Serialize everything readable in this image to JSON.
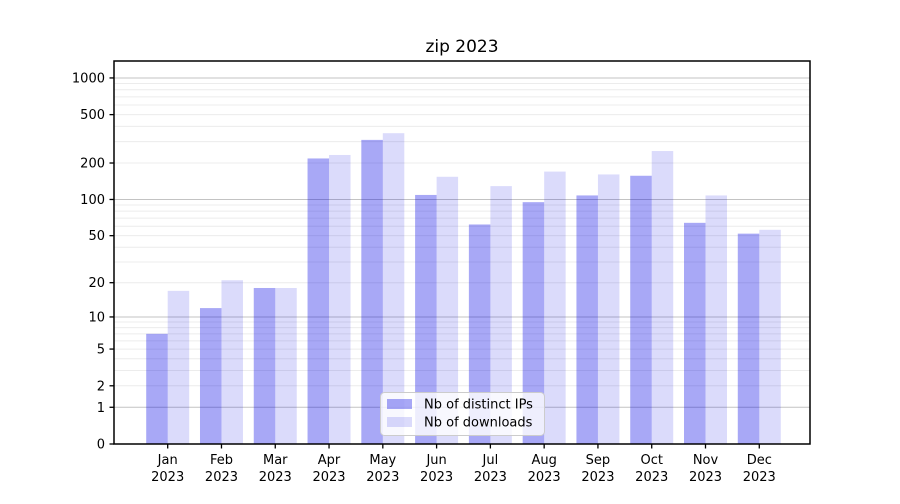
{
  "title": "zip 2023",
  "chart_data": {
    "type": "bar",
    "title": "zip 2023",
    "yscale": "log1p",
    "grid": true,
    "legend_position": "lower center",
    "year_label": "2023",
    "categories": [
      "Jan",
      "Feb",
      "Mar",
      "Apr",
      "May",
      "Jun",
      "Jul",
      "Aug",
      "Sep",
      "Oct",
      "Nov",
      "Dec"
    ],
    "series": [
      {
        "name": "Nb of distinct IPs",
        "color": "#0000e6",
        "opacity": 0.34,
        "values": [
          7,
          12,
          18,
          218,
          310,
          109,
          62,
          95,
          108,
          157,
          64,
          52
        ]
      },
      {
        "name": "Nb of downloads",
        "color": "#0000e6",
        "opacity": 0.14,
        "values": [
          17,
          21,
          18,
          233,
          352,
          154,
          129,
          170,
          161,
          251,
          108,
          56
        ]
      }
    ],
    "yticks": [
      0,
      1,
      2,
      5,
      10,
      20,
      50,
      100,
      200,
      500,
      1000
    ],
    "ytick_labels": [
      "0",
      "1",
      "2",
      "5",
      "10",
      "20",
      "50",
      "100",
      "200",
      "500",
      "1000"
    ],
    "ylim": [
      0,
      1380
    ],
    "colors": {
      "major_grid": "#c3c3c3",
      "minor_grid": "#ececec",
      "frame": "#000000",
      "legend_bg": "#ffffff",
      "legend_border": "#cccccc"
    }
  }
}
